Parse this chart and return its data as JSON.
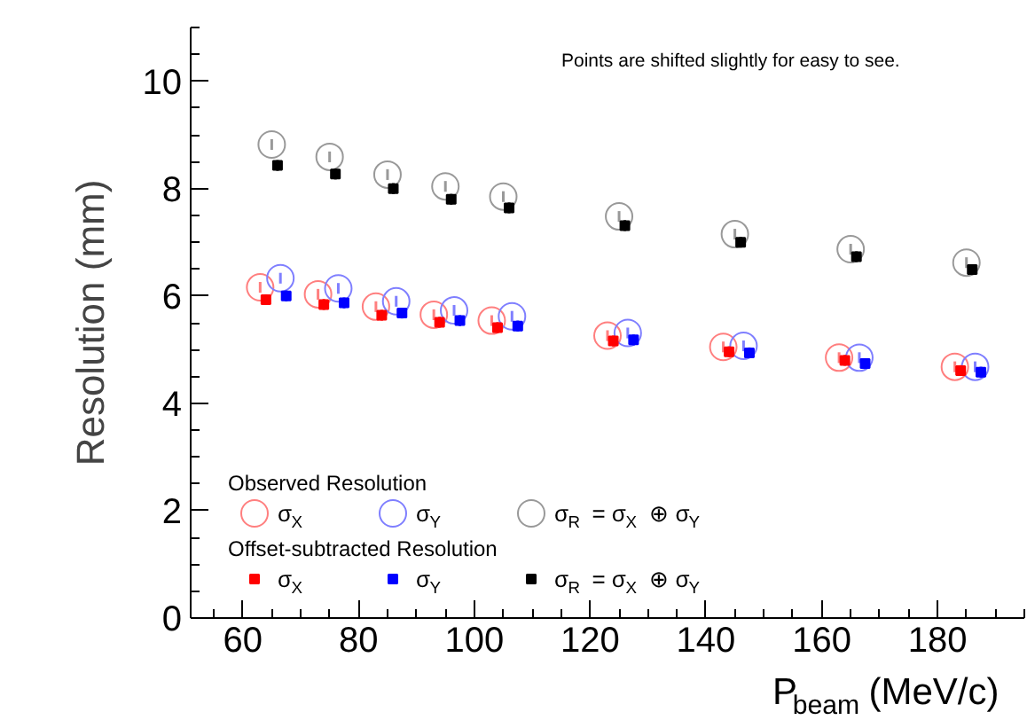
{
  "chart_data": {
    "type": "scatter",
    "xlabel": "P$_{beam}$ (MeV/c)",
    "ylabel": "Resolution (mm)",
    "xlim": [
      51,
      195
    ],
    "ylim": [
      0,
      11
    ],
    "xticks": [
      60,
      80,
      100,
      120,
      140,
      160,
      180
    ],
    "yticks": [
      0,
      2,
      4,
      6,
      8,
      10
    ],
    "grid": false,
    "legend": "bottom left",
    "annotations": [
      "Points are shifted slightly for easy to see.",
      "Observed Resolution",
      "Offset-subtracted Resolution"
    ],
    "series": [
      {
        "name": "σ$_{X}$",
        "color": "#ff7f7f",
        "marker": "circle",
        "x": [
          63,
          73,
          83,
          93,
          103,
          123,
          143,
          163,
          183
        ],
        "values": [
          6.16,
          6.03,
          5.8,
          5.65,
          5.54,
          5.26,
          5.05,
          4.85,
          4.68
        ],
        "errors": [
          0.1,
          0.1,
          0.1,
          0.1,
          0.1,
          0.1,
          0.1,
          0.1,
          0.1
        ]
      },
      {
        "name": "σ$_{Y}$",
        "color": "#7f7fff",
        "marker": "circle",
        "x": [
          66.5,
          76.5,
          86.5,
          96.5,
          106.5,
          126.5,
          146.5,
          166.5,
          186.5
        ],
        "values": [
          6.33,
          6.14,
          5.9,
          5.73,
          5.62,
          5.31,
          5.07,
          4.85,
          4.68
        ],
        "errors": [
          0.1,
          0.1,
          0.1,
          0.1,
          0.1,
          0.1,
          0.1,
          0.1,
          0.1
        ]
      },
      {
        "name": "σ$_{R}$ = σ$_{X}$ ⊕ σ$_{Y}$",
        "color": "#999999",
        "marker": "circle",
        "x": [
          65,
          75,
          85,
          95,
          105,
          125,
          145,
          165,
          185
        ],
        "values": [
          8.82,
          8.59,
          8.26,
          8.04,
          7.85,
          7.48,
          7.15,
          6.87,
          6.62
        ],
        "errors": [
          0.1,
          0.1,
          0.1,
          0.1,
          0.1,
          0.1,
          0.1,
          0.1,
          0.1
        ]
      },
      {
        "name": "σ$_{X}$",
        "color": "#ff0000",
        "marker": "square",
        "x": [
          64,
          74,
          84,
          94,
          104,
          124,
          144,
          164,
          184
        ],
        "values": [
          5.93,
          5.84,
          5.64,
          5.51,
          5.41,
          5.16,
          4.96,
          4.8,
          4.61
        ],
        "errors": [
          0.1,
          0.1,
          0.1,
          0.1,
          0.1,
          0.1,
          0.1,
          0.1,
          0.1
        ]
      },
      {
        "name": "σ$_{Y}$",
        "color": "#0000ff",
        "marker": "square",
        "x": [
          67.5,
          77.5,
          87.5,
          97.5,
          107.5,
          127.5,
          147.5,
          167.5,
          187.5
        ],
        "values": [
          6.0,
          5.87,
          5.68,
          5.54,
          5.44,
          5.18,
          4.94,
          4.74,
          4.58
        ],
        "errors": [
          0.1,
          0.1,
          0.1,
          0.1,
          0.1,
          0.1,
          0.1,
          0.1,
          0.1
        ]
      },
      {
        "name": "σ$_{R}$ = σ$_{X}$ ⊕ σ$_{Y}$",
        "color": "#000000",
        "marker": "square",
        "x": [
          66,
          76,
          86,
          96,
          106,
          126,
          146,
          166,
          186
        ],
        "values": [
          8.43,
          8.27,
          8.0,
          7.8,
          7.64,
          7.31,
          7.0,
          6.73,
          6.49
        ],
        "errors": [
          0.1,
          0.1,
          0.1,
          0.1,
          0.1,
          0.1,
          0.1,
          0.1,
          0.1
        ]
      }
    ]
  }
}
